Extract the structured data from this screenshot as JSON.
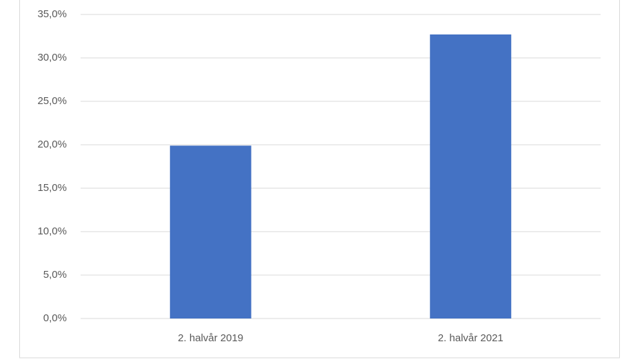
{
  "chart_data": {
    "type": "bar",
    "categories": [
      "2. halvår 2019",
      "2. halvår 2021"
    ],
    "values": [
      19.9,
      32.7
    ],
    "color": "#4472c4",
    "ylim": [
      0,
      35
    ],
    "yticks": [
      {
        "value": 0,
        "label": "0,0%"
      },
      {
        "value": 5,
        "label": "5,0%"
      },
      {
        "value": 10,
        "label": "10,0%"
      },
      {
        "value": 15,
        "label": "15,0%"
      },
      {
        "value": 20,
        "label": "20,0%"
      },
      {
        "value": 25,
        "label": "25,0%"
      },
      {
        "value": 30,
        "label": "30,0%"
      },
      {
        "value": 35,
        "label": "35,0%"
      }
    ],
    "grid": true
  }
}
